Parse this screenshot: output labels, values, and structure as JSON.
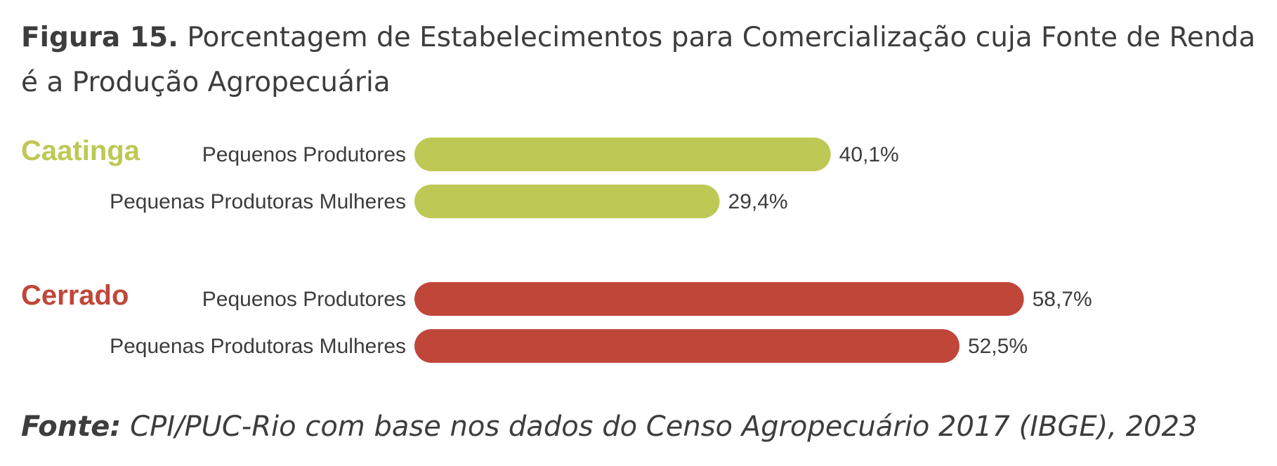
{
  "title": {
    "figure_label": "Figura 15.",
    "text": "Porcentagem de Estabelecimentos para Comercialização cuja Fonte de Renda é a Produção Agropecuária"
  },
  "source": {
    "label": "Fonte:",
    "text": "CPI/PUC-Rio com base nos dados do Censo Agropecuário 2017 (IBGE), 2023"
  },
  "chart_data": {
    "type": "bar",
    "orientation": "horizontal",
    "unit": "%",
    "groups": [
      {
        "name": "Caatinga",
        "color": "#bec854",
        "bars": [
          {
            "category": "Pequenos Produtores",
            "value": 40.1,
            "label": "40,1%"
          },
          {
            "category": "Pequenas Produtoras Mulheres",
            "value": 29.4,
            "label": "29,4%"
          }
        ]
      },
      {
        "name": "Cerrado",
        "color": "#c0463a",
        "bars": [
          {
            "category": "Pequenos Produtores",
            "value": 58.7,
            "label": "58,7%"
          },
          {
            "category": "Pequenas Produtoras Mulheres",
            "value": 52.5,
            "label": "52,5%"
          }
        ]
      }
    ]
  }
}
